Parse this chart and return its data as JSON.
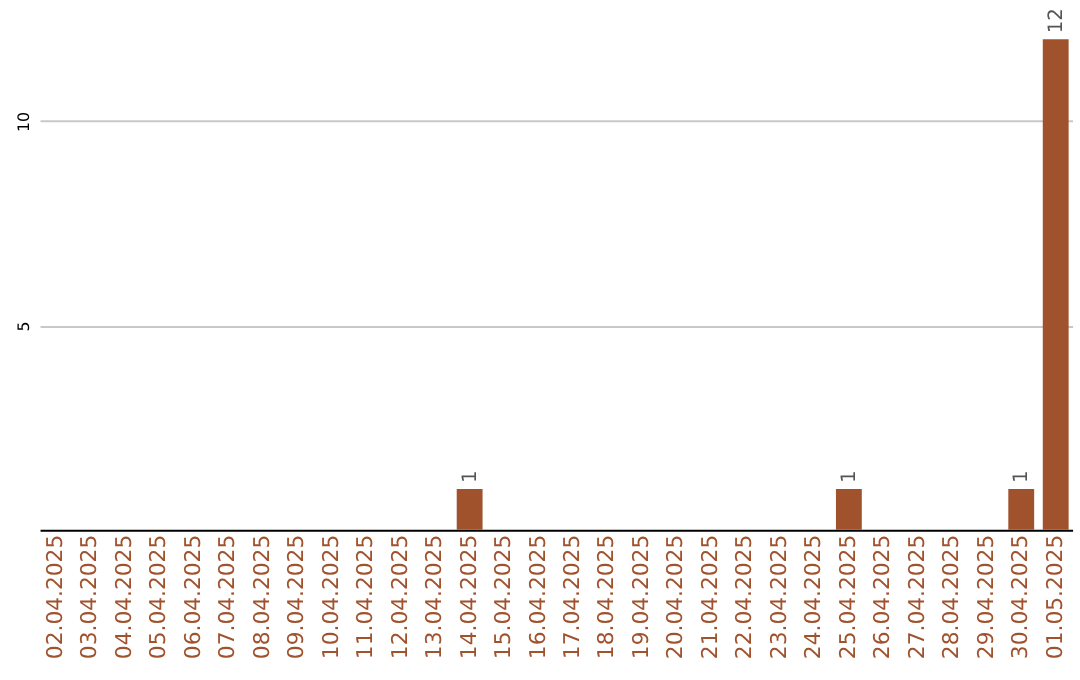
{
  "chart_data": {
    "type": "bar",
    "categories": [
      "02.04.2025",
      "03.04.2025",
      "04.04.2025",
      "05.04.2025",
      "06.04.2025",
      "07.04.2025",
      "08.04.2025",
      "09.04.2025",
      "10.04.2025",
      "11.04.2025",
      "12.04.2025",
      "13.04.2025",
      "14.04.2025",
      "15.04.2025",
      "16.04.2025",
      "17.04.2025",
      "18.04.2025",
      "19.04.2025",
      "20.04.2025",
      "21.04.2025",
      "22.04.2025",
      "23.04.2025",
      "24.04.2025",
      "25.04.2025",
      "26.04.2025",
      "27.04.2025",
      "28.04.2025",
      "29.04.2025",
      "30.04.2025",
      "01.05.2025"
    ],
    "values": [
      0,
      0,
      0,
      0,
      0,
      0,
      0,
      0,
      0,
      0,
      0,
      0,
      1,
      0,
      0,
      0,
      0,
      0,
      0,
      0,
      0,
      0,
      0,
      1,
      0,
      0,
      0,
      0,
      1,
      12
    ],
    "value_labels": [
      null,
      null,
      null,
      null,
      null,
      null,
      null,
      null,
      null,
      null,
      null,
      null,
      "1",
      null,
      null,
      null,
      null,
      null,
      null,
      null,
      null,
      null,
      null,
      "1",
      null,
      null,
      null,
      null,
      "1",
      "12"
    ],
    "color": "#a0522d",
    "ylim": [
      0,
      12
    ],
    "yticks": [
      5,
      10
    ],
    "grid": "y"
  }
}
